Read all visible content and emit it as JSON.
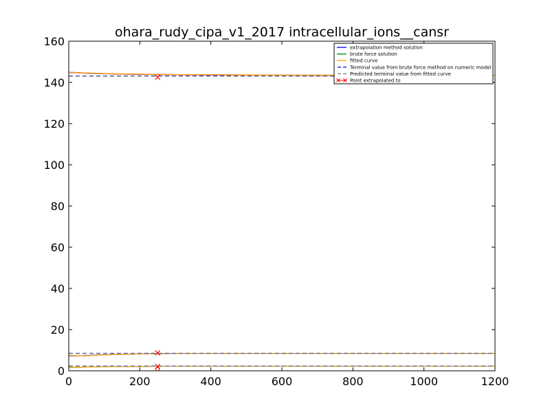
{
  "chart_data": {
    "type": "line",
    "title": "ohara_rudy_cipa_v1_2017 intracellular_ions__cansr",
    "xlabel": "",
    "ylabel": "",
    "xlim": [
      0,
      1200
    ],
    "ylim": [
      0,
      160
    ],
    "x_ticks": [
      "0",
      "200",
      "400",
      "600",
      "800",
      "1000",
      "1200"
    ],
    "y_ticks": [
      "0",
      "20",
      "40",
      "60",
      "80",
      "100",
      "120",
      "140",
      "160"
    ],
    "grid": false,
    "legend_position": "top-right",
    "legend": [
      {
        "label": "extrapolation method solution",
        "color": "#0000ff",
        "style": "solid"
      },
      {
        "label": "brute force solution",
        "color": "#008000",
        "style": "solid"
      },
      {
        "label": "fitted curve",
        "color": "#ffa500",
        "style": "solid"
      },
      {
        "label": "Terminal value from brute force method on numeric model",
        "color": "#0000ff",
        "style": "dashed"
      },
      {
        "label": "Predicted terminal value from fitted curve",
        "color": "#808080",
        "style": "dashed"
      },
      {
        "label": "Point extrapolated to",
        "color": "#ff0000",
        "style": "x-marker"
      }
    ],
    "series": [
      {
        "key": "extrap_high",
        "color": "#0000ff",
        "style": "solid",
        "x": [
          0,
          20,
          40,
          60,
          100,
          150,
          200,
          250,
          300,
          400,
          500,
          600,
          700,
          800,
          1000,
          1200
        ],
        "y": [
          144.8,
          144.7,
          144.5,
          144.4,
          144.2,
          144.0,
          143.9,
          143.8,
          143.7,
          143.6,
          143.5,
          143.5,
          143.4,
          143.4,
          143.4,
          143.4
        ]
      },
      {
        "key": "brute_high",
        "color": "#ff0000",
        "style": "solid",
        "x": [
          0,
          20,
          40,
          60,
          100,
          150,
          200,
          250,
          300,
          400,
          500,
          600,
          700,
          800,
          1000,
          1200
        ],
        "y": [
          144.9,
          144.8,
          144.6,
          144.5,
          144.3,
          144.1,
          144.0,
          143.9,
          143.8,
          143.7,
          143.6,
          143.5,
          143.5,
          143.5,
          143.4,
          143.4
        ]
      },
      {
        "key": "fitted_high",
        "color": "#ffa500",
        "style": "solid",
        "x": [
          0,
          20,
          40,
          60,
          100,
          150,
          200,
          250,
          300,
          400,
          500,
          600,
          700,
          800,
          1000,
          1200
        ],
        "y": [
          144.9,
          144.8,
          144.6,
          144.5,
          144.3,
          144.1,
          144.0,
          143.9,
          143.8,
          143.7,
          143.6,
          143.5,
          143.5,
          143.5,
          143.4,
          143.4
        ]
      },
      {
        "key": "extrap_mid",
        "color": "#0000ff",
        "style": "solid",
        "x": [
          0,
          20,
          40,
          60,
          100,
          150,
          200,
          250,
          300,
          400,
          500,
          600,
          700,
          800,
          1000,
          1200
        ],
        "y": [
          7.2,
          7.2,
          7.3,
          7.5,
          7.8,
          8.0,
          8.2,
          8.3,
          8.4,
          8.4,
          8.4,
          8.4,
          8.4,
          8.4,
          8.4,
          8.4
        ]
      },
      {
        "key": "fitted_mid",
        "color": "#ffa500",
        "style": "solid",
        "x": [
          0,
          20,
          40,
          60,
          100,
          150,
          200,
          250,
          300,
          400,
          500,
          600,
          700,
          800,
          1000,
          1200
        ],
        "y": [
          7.4,
          7.3,
          7.2,
          7.4,
          7.7,
          8.0,
          8.2,
          8.3,
          8.4,
          8.4,
          8.4,
          8.4,
          8.4,
          8.4,
          8.4,
          8.4
        ]
      },
      {
        "key": "brute_low",
        "color": "#008000",
        "style": "solid",
        "x": [
          0,
          20,
          40,
          60,
          100,
          150,
          200,
          250,
          300,
          400,
          500,
          600,
          700,
          800,
          1000,
          1200
        ],
        "y": [
          1.6,
          1.7,
          1.8,
          1.9,
          2.0,
          2.1,
          2.1,
          2.2,
          2.2,
          2.2,
          2.2,
          2.2,
          2.2,
          2.2,
          2.2,
          2.2
        ]
      },
      {
        "key": "fitted_low",
        "color": "#ffa500",
        "style": "solid",
        "x": [
          0,
          20,
          40,
          60,
          100,
          150,
          200,
          250,
          300,
          400,
          500,
          600,
          700,
          800,
          1000,
          1200
        ],
        "y": [
          1.7,
          1.8,
          1.8,
          1.9,
          2.0,
          2.1,
          2.1,
          2.2,
          2.2,
          2.2,
          2.2,
          2.2,
          2.2,
          2.2,
          2.2,
          2.2
        ]
      }
    ],
    "hlines": [
      {
        "key": "terminal_brute_high",
        "y": 143.1,
        "color": "#0000ff",
        "style": "dashed"
      },
      {
        "key": "terminal_fitted_high",
        "y": 143.0,
        "color": "#808080",
        "style": "dashed"
      },
      {
        "key": "terminal_brute_mid",
        "y": 8.5,
        "color": "#0000ff",
        "style": "dashed"
      },
      {
        "key": "terminal_fitted_mid",
        "y": 8.4,
        "color": "#808080",
        "style": "dashed"
      },
      {
        "key": "terminal_brute_low",
        "y": 2.3,
        "color": "#0000ff",
        "style": "dashed"
      },
      {
        "key": "terminal_fitted_low",
        "y": 2.2,
        "color": "#808080",
        "style": "dashed"
      }
    ],
    "markers": [
      {
        "x": 250,
        "y": 142.5,
        "color": "#ff0000",
        "shape": "x"
      },
      {
        "x": 250,
        "y": 8.7,
        "color": "#ff0000",
        "shape": "x"
      },
      {
        "x": 250,
        "y": 2.1,
        "color": "#ff0000",
        "shape": "x"
      },
      {
        "x": 250,
        "y": 0.8,
        "color": "#ff0000",
        "shape": "circle"
      }
    ]
  }
}
